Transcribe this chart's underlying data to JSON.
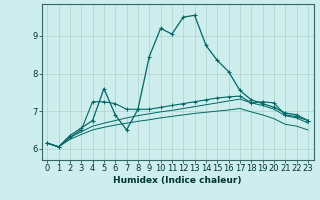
{
  "xlabel": "Humidex (Indice chaleur)",
  "background_color": "#ceeeed",
  "line_color": "#006666",
  "xlim": [
    -0.5,
    23.5
  ],
  "ylim": [
    5.7,
    9.85
  ],
  "xticks": [
    0,
    1,
    2,
    3,
    4,
    5,
    6,
    7,
    8,
    9,
    10,
    11,
    12,
    13,
    14,
    15,
    16,
    17,
    18,
    19,
    20,
    21,
    22,
    23
  ],
  "yticks": [
    6,
    7,
    8,
    9
  ],
  "line1": [
    6.15,
    6.05,
    6.35,
    6.55,
    6.75,
    7.6,
    6.9,
    6.5,
    7.05,
    8.45,
    9.2,
    9.05,
    9.5,
    9.55,
    8.75,
    8.35,
    8.05,
    7.55,
    7.3,
    7.2,
    7.1,
    6.95,
    6.9,
    6.75
  ],
  "line2": [
    6.15,
    6.05,
    6.3,
    6.5,
    7.25,
    7.25,
    7.2,
    7.05,
    7.05,
    7.05,
    7.1,
    7.15,
    7.2,
    7.25,
    7.3,
    7.35,
    7.38,
    7.4,
    7.22,
    7.25,
    7.22,
    6.9,
    6.85,
    6.75
  ],
  "line3": [
    6.15,
    6.05,
    6.3,
    6.45,
    6.6,
    6.68,
    6.75,
    6.82,
    6.88,
    6.93,
    6.98,
    7.02,
    7.07,
    7.12,
    7.17,
    7.22,
    7.27,
    7.32,
    7.22,
    7.15,
    7.05,
    6.88,
    6.82,
    6.68
  ],
  "line4": [
    6.15,
    6.05,
    6.25,
    6.38,
    6.5,
    6.57,
    6.63,
    6.68,
    6.73,
    6.77,
    6.82,
    6.86,
    6.9,
    6.94,
    6.97,
    7.0,
    7.03,
    7.07,
    6.98,
    6.9,
    6.8,
    6.65,
    6.6,
    6.5
  ]
}
